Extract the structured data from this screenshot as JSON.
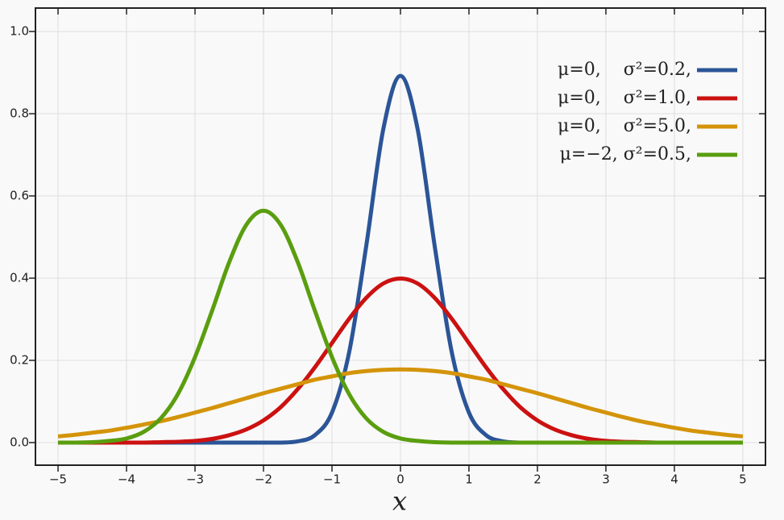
{
  "chart_data": {
    "type": "line",
    "xlabel": "x",
    "x": [
      -5,
      -4.75,
      -4.5,
      -4.25,
      -4,
      -3.75,
      -3.5,
      -3.25,
      -3,
      -2.75,
      -2.5,
      -2.25,
      -2,
      -1.75,
      -1.5,
      -1.25,
      -1,
      -0.75,
      -0.5,
      -0.25,
      0,
      0.25,
      0.5,
      0.75,
      1,
      1.25,
      1.5,
      1.75,
      2,
      2.25,
      2.5,
      2.75,
      3,
      3.25,
      3.5,
      3.75,
      4,
      4.25,
      4.5,
      4.75,
      5
    ],
    "series": [
      {
        "name": "μ=0,    σ²=0.2,",
        "color": "#2b5597",
        "values": [
          0,
          0,
          0,
          0,
          0,
          0,
          0,
          0,
          0,
          0,
          0,
          0,
          0,
          0,
          0.003,
          0.018,
          0.073,
          0.219,
          0.478,
          0.763,
          0.892,
          0.763,
          0.478,
          0.219,
          0.073,
          0.018,
          0.003,
          0,
          0,
          0,
          0,
          0,
          0,
          0,
          0,
          0,
          0,
          0,
          0,
          0,
          0
        ]
      },
      {
        "name": "μ=0,    σ²=1.0,",
        "color": "#cc1111",
        "values": [
          0,
          0,
          0,
          0,
          0,
          0,
          0.001,
          0.002,
          0.004,
          0.009,
          0.018,
          0.032,
          0.054,
          0.086,
          0.13,
          0.183,
          0.242,
          0.301,
          0.352,
          0.387,
          0.399,
          0.387,
          0.352,
          0.301,
          0.242,
          0.183,
          0.13,
          0.086,
          0.054,
          0.032,
          0.018,
          0.009,
          0.004,
          0.002,
          0.001,
          0,
          0,
          0,
          0,
          0,
          0
        ]
      },
      {
        "name": "μ=0,    σ²=5.0,",
        "color": "#d4940a",
        "values": [
          0.015,
          0.019,
          0.024,
          0.029,
          0.036,
          0.044,
          0.052,
          0.062,
          0.073,
          0.084,
          0.096,
          0.108,
          0.12,
          0.131,
          0.142,
          0.153,
          0.161,
          0.169,
          0.174,
          0.177,
          0.178,
          0.177,
          0.174,
          0.169,
          0.161,
          0.153,
          0.142,
          0.131,
          0.12,
          0.108,
          0.096,
          0.084,
          0.073,
          0.062,
          0.052,
          0.044,
          0.036,
          0.029,
          0.024,
          0.019,
          0.015
        ]
      },
      {
        "name": "μ=−2, σ²=0.5,",
        "color": "#5a9e0f",
        "values": [
          0,
          0,
          0.001,
          0.004,
          0.01,
          0.026,
          0.059,
          0.118,
          0.208,
          0.321,
          0.439,
          0.53,
          0.564,
          0.53,
          0.439,
          0.321,
          0.208,
          0.118,
          0.059,
          0.026,
          0.01,
          0.004,
          0.001,
          0,
          0,
          0,
          0,
          0,
          0,
          0,
          0,
          0,
          0,
          0,
          0,
          0,
          0,
          0,
          0,
          0,
          0
        ]
      }
    ],
    "xlim": [
      -5.33,
      5.33
    ],
    "xticks": [
      {
        "value": -5,
        "label": "−5"
      },
      {
        "value": -4,
        "label": "−4"
      },
      {
        "value": -3,
        "label": "−3"
      },
      {
        "value": -2,
        "label": "−2"
      },
      {
        "value": -1,
        "label": "−1"
      },
      0,
      1,
      2,
      3,
      4,
      5
    ],
    "ylim": [
      -0.055,
      1.057
    ],
    "yticks": [
      {
        "value": 0,
        "label": "0.0"
      },
      0.2,
      0.4,
      0.6,
      0.8,
      {
        "value": 1,
        "label": "1.0"
      }
    ],
    "grid": true,
    "legend": "upper right"
  }
}
